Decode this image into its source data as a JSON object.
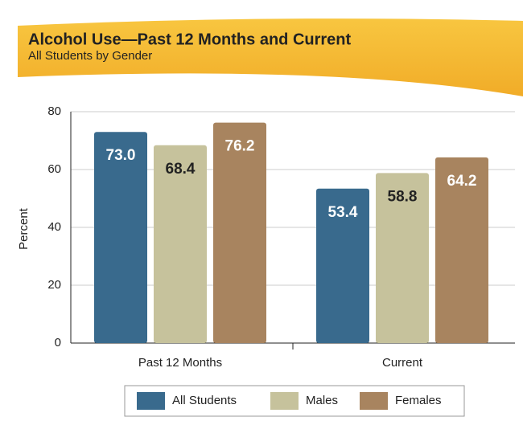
{
  "chart_data": {
    "type": "bar",
    "title": "Alcohol Use—Past 12 Months and Current",
    "subtitle": "All Students by Gender",
    "y_label": "Percent",
    "categories": [
      "Past 12 Months",
      "Current"
    ],
    "series": [
      {
        "name": "All Students",
        "color": "#396a8d",
        "values": [
          73.0,
          53.4
        ],
        "value_labels": [
          "73.0",
          "53.4"
        ],
        "label_color": "#ffffff"
      },
      {
        "name": "Males",
        "color": "#c6c29c",
        "values": [
          68.4,
          58.8
        ],
        "value_labels": [
          "68.4",
          "58.8"
        ],
        "label_color": "#222222"
      },
      {
        "name": "Females",
        "color": "#a8845f",
        "values": [
          76.2,
          64.2
        ],
        "value_labels": [
          "76.2",
          "64.2"
        ],
        "label_color": "#ffffff"
      }
    ],
    "ylim": [
      0,
      80
    ],
    "yticks": [
      0,
      20,
      40,
      60,
      80
    ],
    "grid": true,
    "legend": "bottom"
  }
}
